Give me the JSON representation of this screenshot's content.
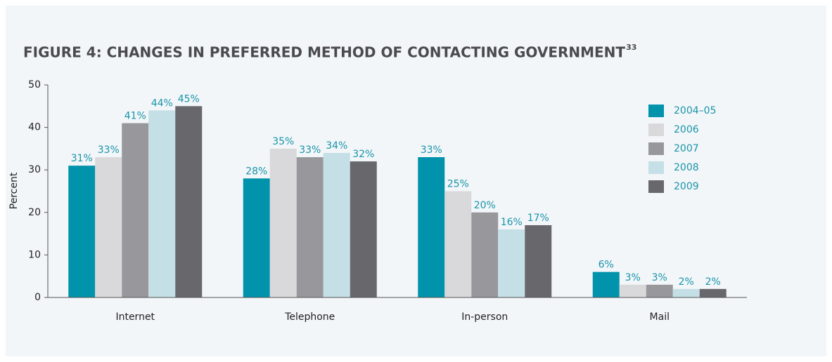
{
  "chart_data": {
    "type": "bar",
    "title": "FIGURE 4: CHANGES IN PREFERRED METHOD OF CONTACTING GOVERNMENT",
    "title_note": "33",
    "y_label": "Percent",
    "categories": [
      "Internet",
      "Telephone",
      "In-person",
      "Mail"
    ],
    "series": [
      {
        "name": "2004–05",
        "color": "#0093ab",
        "values": [
          31,
          28,
          33,
          6
        ],
        "value_labels": [
          "31%",
          "28%",
          "33%",
          "6%"
        ]
      },
      {
        "name": "2006",
        "color": "#d9d9db",
        "values": [
          33,
          35,
          25,
          3
        ],
        "value_labels": [
          "33%",
          "35%",
          "25%",
          "3%"
        ]
      },
      {
        "name": "2007",
        "color": "#98989c",
        "values": [
          41,
          33,
          20,
          3
        ],
        "value_labels": [
          "41%",
          "33%",
          "20%",
          "3%"
        ]
      },
      {
        "name": "2008",
        "color": "#c5dfe6",
        "values": [
          44,
          34,
          16,
          2
        ],
        "value_labels": [
          "44%",
          "34%",
          "16%",
          "2%"
        ]
      },
      {
        "name": "2009",
        "color": "#68676c",
        "values": [
          45,
          32,
          17,
          2
        ],
        "value_labels": [
          "45%",
          "32%",
          "17%",
          "2%"
        ]
      }
    ],
    "ylim": [
      0,
      50
    ],
    "yticks": [
      0,
      10,
      20,
      30,
      40,
      50
    ],
    "grid": false,
    "legend": "upper right"
  }
}
